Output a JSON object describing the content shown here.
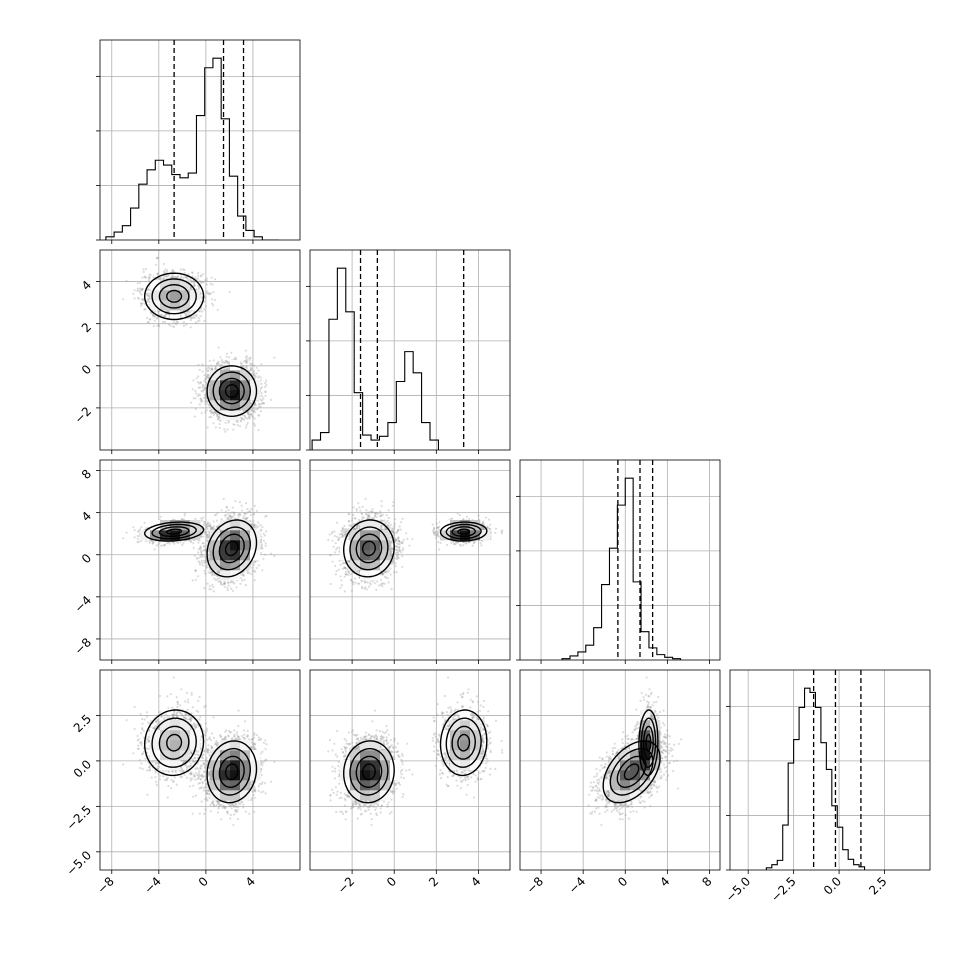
{
  "chart_data": {
    "type": "corner",
    "title": "",
    "parameters": [
      {
        "xlim": [
          -9,
          8
        ],
        "xticks": [
          -8,
          -4,
          0,
          4
        ],
        "hist": {
          "bin_start": -8.5,
          "bin_width": 0.7,
          "counts": [
            2,
            5,
            9,
            20,
            35,
            44,
            50,
            47,
            41,
            39,
            42,
            78,
            108,
            114,
            76,
            40,
            15,
            6,
            2,
            0,
            0
          ],
          "quantiles": [
            -2.7,
            1.5,
            3.2
          ]
        }
      },
      {
        "xlim": [
          -4,
          5.5
        ],
        "xticks": [
          -2,
          0,
          2,
          4
        ],
        "yticks": [
          4,
          2,
          0,
          -2
        ],
        "hist": {
          "bin_start": -3.9,
          "bin_width": 0.4,
          "counts": [
            8,
            14,
            105,
            146,
            111,
            46,
            12,
            8,
            11,
            22,
            55,
            79,
            62,
            22,
            8
          ],
          "quantiles": [
            -1.6,
            -0.8,
            3.3
          ]
        }
      },
      {
        "xlim": [
          -10,
          9
        ],
        "xticks": [
          -8,
          -4,
          0,
          4,
          8
        ],
        "yticks": [
          8,
          4,
          0,
          -4,
          -8
        ],
        "hist": {
          "bin_start": -6.0,
          "bin_width": 0.75,
          "counts": [
            1,
            3,
            6,
            11,
            24,
            56,
            83,
            115,
            135,
            58,
            21,
            9,
            4,
            2,
            1
          ],
          "quantiles": [
            -0.7,
            1.4,
            2.6
          ]
        }
      },
      {
        "xlim": [
          -6,
          5
        ],
        "xticks": [
          -5.0,
          -2.5,
          0.0,
          2.5
        ],
        "yticks": [
          2.5,
          0.0,
          -2.5,
          -5.0
        ],
        "hist": {
          "bin_start": -4.0,
          "bin_width": 0.3,
          "counts": [
            2,
            5,
            9,
            42,
            100,
            122,
            152,
            170,
            166,
            152,
            119,
            94,
            60,
            40,
            19,
            10,
            5,
            3
          ],
          "quantiles": [
            -1.4,
            -0.2,
            1.2
          ]
        }
      }
    ],
    "clusters": [
      {
        "means": [
          -2.7,
          3.3,
          2.2,
          1.0
        ],
        "sds": [
          1.25,
          0.55,
          0.45,
          0.9
        ],
        "weight": 0.33,
        "corr": [
          [
            0,
            2,
            0.2
          ],
          [
            1,
            2,
            0.05
          ],
          [
            0,
            3,
            0.05
          ],
          [
            2,
            3,
            0.05
          ],
          [
            1,
            3,
            0.05
          ]
        ]
      },
      {
        "means": [
          2.2,
          -1.2,
          0.6,
          -0.6
        ],
        "sds": [
          1.05,
          0.6,
          1.35,
          0.85
        ],
        "weight": 0.67,
        "corr": [
          [
            0,
            2,
            0.2
          ],
          [
            2,
            3,
            0.45
          ],
          [
            1,
            2,
            0.05
          ],
          [
            0,
            3,
            0.1
          ],
          [
            1,
            3,
            0.05
          ]
        ]
      }
    ]
  }
}
